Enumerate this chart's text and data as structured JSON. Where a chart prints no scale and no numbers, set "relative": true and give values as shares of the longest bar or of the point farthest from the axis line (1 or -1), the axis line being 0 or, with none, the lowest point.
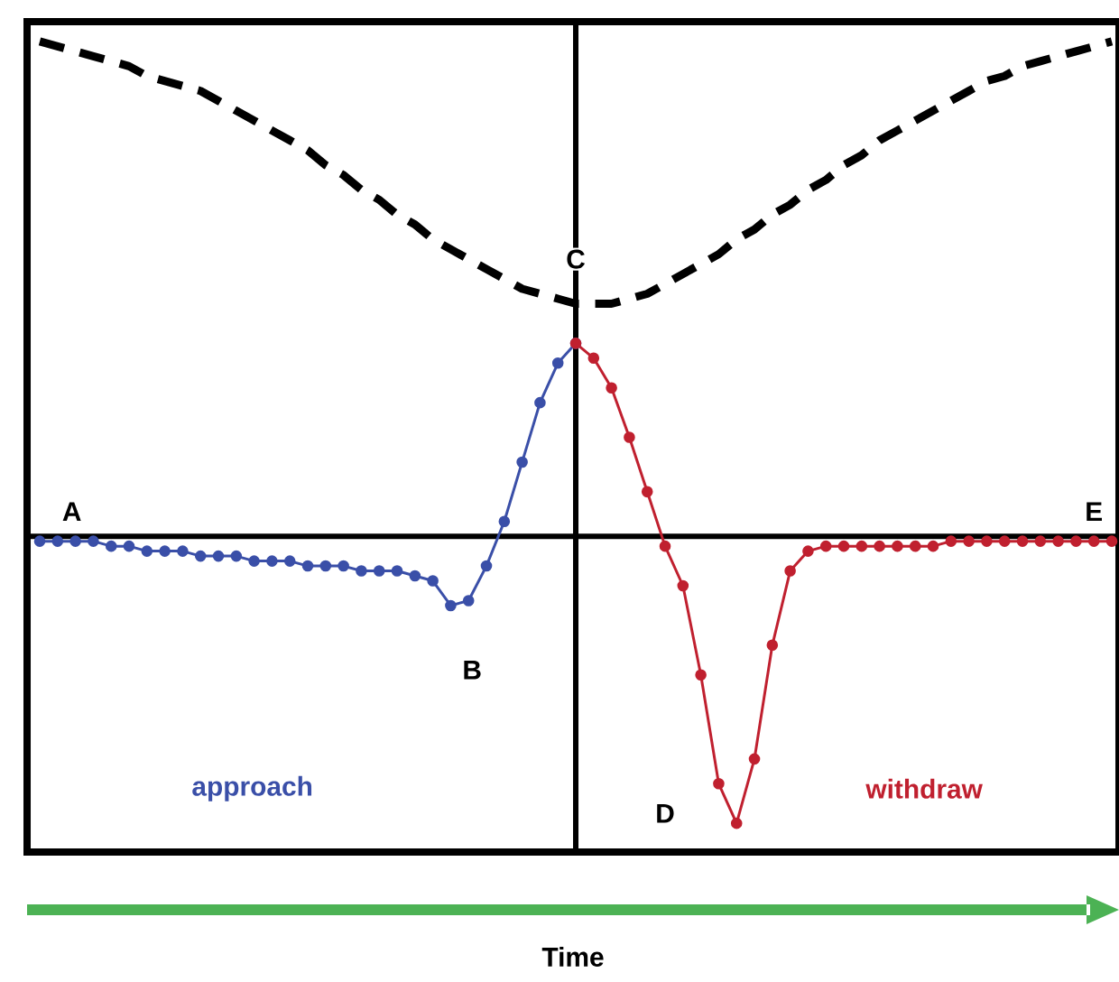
{
  "chart_data": {
    "type": "line",
    "relative": true,
    "xlabel": "Time",
    "categories": [
      null,
      null,
      null,
      null,
      null,
      null,
      null,
      null,
      null,
      null,
      null,
      null,
      null,
      null,
      null,
      null,
      null,
      null,
      null,
      null,
      null,
      null,
      null,
      null,
      null,
      null,
      null,
      null,
      null,
      null,
      null,
      null,
      null,
      null,
      null,
      null,
      null,
      null,
      null,
      null,
      null,
      null,
      null,
      null,
      null,
      null,
      null,
      null,
      null,
      null,
      null,
      null,
      null,
      null,
      null,
      null,
      null,
      null,
      null,
      null,
      null
    ],
    "series": [
      {
        "color": "#000000",
        "line_style": "dashed",
        "marker": "none",
        "values": [
          1.0,
          0.99,
          0.98,
          0.97,
          0.96,
          0.95,
          0.93,
          0.92,
          0.91,
          0.9,
          0.88,
          0.86,
          0.84,
          0.82,
          0.8,
          0.78,
          0.75,
          0.73,
          0.7,
          0.68,
          0.65,
          0.63,
          0.6,
          0.58,
          0.56,
          0.54,
          0.52,
          0.5,
          0.49,
          0.48,
          0.47,
          0.47,
          0.47,
          0.48,
          0.49,
          0.51,
          0.53,
          0.55,
          0.57,
          0.6,
          0.62,
          0.65,
          0.67,
          0.7,
          0.72,
          0.75,
          0.77,
          0.8,
          0.82,
          0.84,
          0.86,
          0.88,
          0.9,
          0.92,
          0.93,
          0.95,
          0.96,
          0.97,
          0.98,
          0.99,
          1.0
        ]
      },
      {
        "color": "#3a4fa8",
        "line_style": "solid",
        "marker": "circle",
        "values": [
          -0.01,
          -0.01,
          -0.01,
          -0.01,
          -0.02,
          -0.02,
          -0.03,
          -0.03,
          -0.03,
          -0.04,
          -0.04,
          -0.04,
          -0.05,
          -0.05,
          -0.05,
          -0.06,
          -0.06,
          -0.06,
          -0.07,
          -0.07,
          -0.07,
          -0.08,
          -0.09,
          -0.14,
          -0.13,
          -0.06,
          0.03,
          0.15,
          0.27,
          0.35,
          0.39,
          null,
          null,
          null,
          null,
          null,
          null,
          null,
          null,
          null,
          null,
          null,
          null,
          null,
          null,
          null,
          null,
          null,
          null,
          null,
          null,
          null,
          null,
          null,
          null,
          null,
          null,
          null,
          null,
          null,
          null
        ]
      },
      {
        "color": "#c0202f",
        "line_style": "solid",
        "marker": "circle",
        "values": [
          null,
          null,
          null,
          null,
          null,
          null,
          null,
          null,
          null,
          null,
          null,
          null,
          null,
          null,
          null,
          null,
          null,
          null,
          null,
          null,
          null,
          null,
          null,
          null,
          null,
          null,
          null,
          null,
          null,
          null,
          0.39,
          0.36,
          0.3,
          0.2,
          0.09,
          -0.02,
          -0.1,
          -0.28,
          -0.5,
          -0.58,
          -0.45,
          -0.22,
          -0.07,
          -0.03,
          -0.02,
          -0.02,
          -0.02,
          -0.02,
          -0.02,
          -0.02,
          -0.02,
          -0.01,
          -0.01,
          -0.01,
          -0.01,
          -0.01,
          -0.01,
          -0.01,
          -0.01,
          -0.01,
          -0.01
        ]
      }
    ],
    "annotations": [
      "A",
      "B",
      "C",
      "D",
      "E",
      "approach",
      "withdraw"
    ]
  }
}
